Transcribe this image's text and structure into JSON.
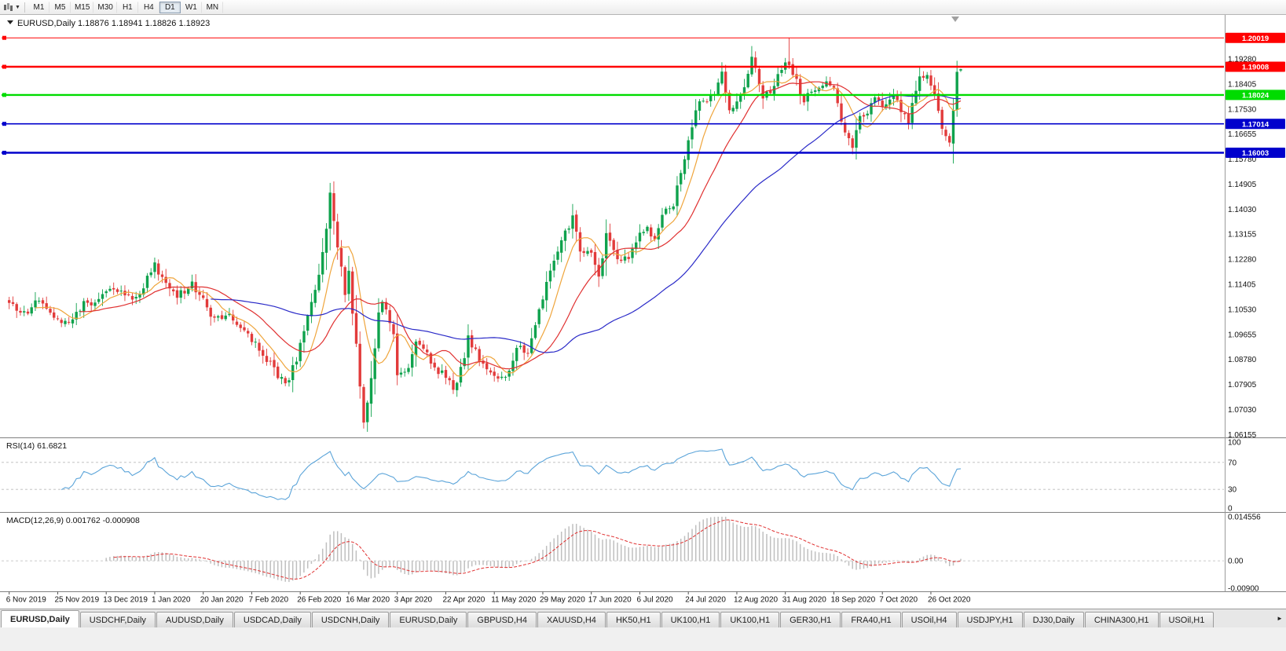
{
  "toolbar": {
    "periods_icon": "candlestick-chart-icon",
    "timeframes": [
      "M1",
      "M5",
      "M15",
      "M30",
      "H1",
      "H4",
      "D1",
      "W1",
      "MN"
    ],
    "active_timeframe": "D1"
  },
  "chart": {
    "title": "EURUSD,Daily",
    "ohlc": {
      "open": "1.18876",
      "high": "1.18941",
      "low": "1.18826",
      "close": "1.18923"
    },
    "header_line": "EURUSD,Daily 1.18876 1.18941 1.18826 1.18923",
    "hlines": [
      {
        "price": "1.20019",
        "color": "#FF0000",
        "width": 1
      },
      {
        "price": "1.19008",
        "color": "#FF0000",
        "width": 2.4
      },
      {
        "price": "1.18024",
        "color": "#00DC00",
        "width": 2.4
      },
      {
        "price": "1.17014",
        "color": "#0000CC",
        "width": 1.6
      },
      {
        "price": "1.16003",
        "color": "#0000CC",
        "width": 2.4
      }
    ],
    "y_axis_labels": [
      "1.19280",
      "1.18405",
      "1.17530",
      "1.16655",
      "1.15780",
      "1.14905",
      "1.14030",
      "1.13155",
      "1.12280",
      "1.11405",
      "1.10530",
      "1.09655",
      "1.08780",
      "1.07905",
      "1.07030",
      "1.06155"
    ],
    "x_axis_labels": [
      "6 Nov 2019",
      "25 Nov 2019",
      "13 Dec 2019",
      "1 Jan 2020",
      "20 Jan 2020",
      "7 Feb 2020",
      "26 Feb 2020",
      "16 Mar 2020",
      "3 Apr 2020",
      "22 Apr 2020",
      "11 May 2020",
      "29 May 2020",
      "17 Jun 2020",
      "6 Jul 2020",
      "24 Jul 2020",
      "12 Aug 2020",
      "31 Aug 2020",
      "18 Sep 2020",
      "7 Oct 2020",
      "26 Oct 2020"
    ]
  },
  "rsi": {
    "label": "RSI(14) 61.6821",
    "name": "RSI",
    "period": "14",
    "value": "61.6821",
    "line_color": "#5BA4D9",
    "levels": [
      {
        "text": "100",
        "value": 100,
        "line": false
      },
      {
        "text": "70",
        "value": 70,
        "line": true
      },
      {
        "text": "30",
        "value": 30,
        "line": true
      },
      {
        "text": "0",
        "value": 0,
        "line": false
      }
    ]
  },
  "macd": {
    "label": "MACD(12,26,9) 0.001762 -0.000908",
    "macd_value": "0.001762",
    "signal_value": "-0.000908",
    "histogram_color": "#BFBFBF",
    "signal_color": "#E03030",
    "axis_labels": [
      {
        "text": "0.014556",
        "value": 0.014556
      },
      {
        "text": "0.00",
        "value": 0
      },
      {
        "text": "-0.00900",
        "value": -0.009
      }
    ]
  },
  "tabs": {
    "active_index": 0,
    "scroll_right_glyph": "►",
    "items": [
      "EURUSD,Daily",
      "USDCHF,Daily",
      "AUDUSD,Daily",
      "USDCAD,Daily",
      "USDCNH,Daily",
      "EURUSD,Daily",
      "GBPUSD,H4",
      "XAUUSD,H4",
      "HK50,H1",
      "UK100,H1",
      "UK100,H1",
      "GER30,H1",
      "FRA40,H1",
      "USOil,H4",
      "USDJPY,H1",
      "DJ30,Daily",
      "CHINA300,H1",
      "USOil,H1"
    ]
  },
  "chart_data": {
    "type": "candlestick",
    "symbol": "EURUSD",
    "period": "Daily",
    "bars": 256,
    "y_range": [
      1.0608,
      1.2082
    ],
    "up_color": "#0FA24D",
    "down_color": "#E23B3B",
    "x_tick_labels": [
      "6 Nov 2019",
      "25 Nov 2019",
      "13 Dec 2019",
      "1 Jan 2020",
      "20 Jan 2020",
      "7 Feb 2020",
      "26 Feb 2020",
      "16 Mar 2020",
      "3 Apr 2020",
      "22 Apr 2020",
      "11 May 2020",
      "29 May 2020",
      "17 Jun 2020",
      "6 Jul 2020",
      "24 Jul 2020",
      "12 Aug 2020",
      "31 Aug 2020",
      "18 Sep 2020",
      "7 Oct 2020",
      "26 Oct 2020"
    ],
    "y_tick_labels": [
      "1.19280",
      "1.18405",
      "1.17530",
      "1.16655",
      "1.15780",
      "1.14905",
      "1.14030",
      "1.13155",
      "1.12280",
      "1.11405",
      "1.10530",
      "1.09655",
      "1.08780",
      "1.07905",
      "1.07030",
      "1.06155"
    ],
    "price_anchors": [
      [
        0,
        1.107
      ],
      [
        4,
        1.1035
      ],
      [
        8,
        1.1095
      ],
      [
        13,
        1.1015
      ],
      [
        16,
        1.1
      ],
      [
        20,
        1.107
      ],
      [
        24,
        1.1085
      ],
      [
        26,
        1.1115
      ],
      [
        30,
        1.111
      ],
      [
        33,
        1.1085
      ],
      [
        36,
        1.1135
      ],
      [
        39,
        1.1205
      ],
      [
        41,
        1.116
      ],
      [
        45,
        1.11
      ],
      [
        49,
        1.114
      ],
      [
        55,
        1.102
      ],
      [
        58,
        1.1035
      ],
      [
        62,
        1.0995
      ],
      [
        65,
        1.0945
      ],
      [
        70,
        1.0865
      ],
      [
        74,
        1.0785
      ],
      [
        77,
        1.088
      ],
      [
        80,
        1.102
      ],
      [
        84,
        1.124
      ],
      [
        86,
        1.145
      ],
      [
        88,
        1.127
      ],
      [
        90,
        1.111
      ],
      [
        91,
        1.118
      ],
      [
        93,
        1.092
      ],
      [
        95,
        1.066
      ],
      [
        96,
        1.072
      ],
      [
        99,
        1.103
      ],
      [
        100,
        1.109
      ],
      [
        103,
        1.096
      ],
      [
        104,
        1.081
      ],
      [
        107,
        1.086
      ],
      [
        109,
        1.093
      ],
      [
        112,
        1.091
      ],
      [
        114,
        1.084
      ],
      [
        117,
        1.082
      ],
      [
        119,
        1.077
      ],
      [
        122,
        1.0875
      ],
      [
        123,
        1.0955
      ],
      [
        125,
        1.0905
      ],
      [
        128,
        1.0835
      ],
      [
        130,
        1.081
      ],
      [
        133,
        1.0805
      ],
      [
        136,
        1.092
      ],
      [
        139,
        1.09
      ],
      [
        143,
        1.11
      ],
      [
        146,
        1.123
      ],
      [
        148,
        1.129
      ],
      [
        151,
        1.137
      ],
      [
        153,
        1.1255
      ],
      [
        156,
        1.1245
      ],
      [
        158,
        1.1175
      ],
      [
        160,
        1.131
      ],
      [
        163,
        1.122
      ],
      [
        166,
        1.1235
      ],
      [
        169,
        1.131
      ],
      [
        171,
        1.133
      ],
      [
        173,
        1.13
      ],
      [
        176,
        1.141
      ],
      [
        178,
        1.1425
      ],
      [
        180,
        1.1525
      ],
      [
        182,
        1.1655
      ],
      [
        185,
        1.179
      ],
      [
        187,
        1.1775
      ],
      [
        189,
        1.1805
      ],
      [
        191,
        1.1875
      ],
      [
        193,
        1.174
      ],
      [
        195,
        1.179
      ],
      [
        197,
        1.184
      ],
      [
        199,
        1.193
      ],
      [
        202,
        1.1795
      ],
      [
        205,
        1.183
      ],
      [
        207,
        1.19
      ],
      [
        209,
        1.191
      ],
      [
        211,
        1.185
      ],
      [
        213,
        1.178
      ],
      [
        215,
        1.1815
      ],
      [
        218,
        1.1845
      ],
      [
        221,
        1.184
      ],
      [
        224,
        1.166
      ],
      [
        226,
        1.163
      ],
      [
        228,
        1.172
      ],
      [
        230,
        1.1745
      ],
      [
        232,
        1.1785
      ],
      [
        234,
        1.1765
      ],
      [
        237,
        1.1815
      ],
      [
        239,
        1.1745
      ],
      [
        241,
        1.1715
      ],
      [
        244,
        1.186
      ],
      [
        246,
        1.186
      ],
      [
        248,
        1.1795
      ],
      [
        250,
        1.1675
      ],
      [
        252,
        1.164
      ],
      [
        253,
        1.176
      ],
      [
        254,
        1.187
      ],
      [
        255,
        1.1892
      ]
    ],
    "overrides": [
      {
        "index": 86,
        "high": 1.1495
      },
      {
        "index": 95,
        "low": 1.0636
      },
      {
        "index": 209,
        "high": 1.20019
      },
      {
        "index": 255,
        "open": 1.18876,
        "high": 1.18941,
        "low": 1.18826,
        "close": 1.18923
      }
    ],
    "moving_averages": [
      {
        "period": 8,
        "color": "#EFA53C"
      },
      {
        "period": 20,
        "color": "#E03030"
      },
      {
        "period": 55,
        "color": "#2A2AC8"
      }
    ],
    "indicators": [
      "RSI(14)",
      "MACD(12,26,9)"
    ]
  }
}
